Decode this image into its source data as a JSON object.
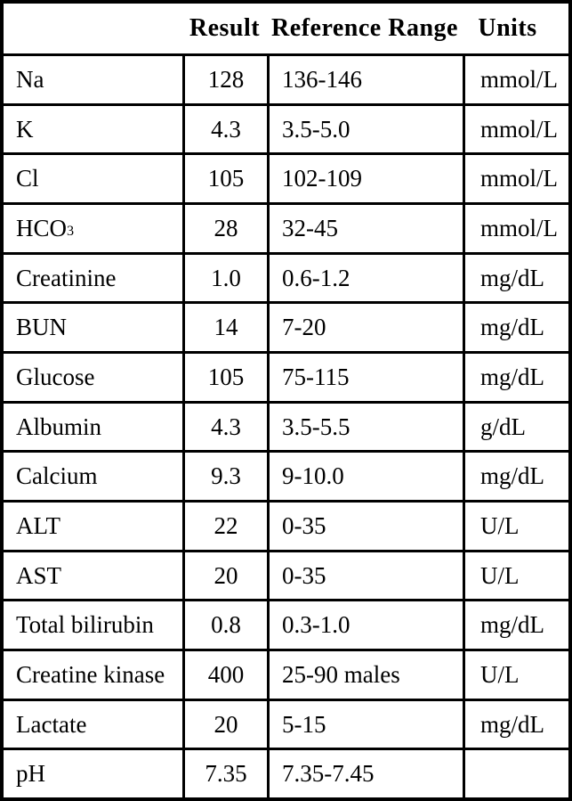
{
  "colors": {
    "border": "#000000",
    "background": "#ffffff",
    "text": "#000000"
  },
  "table": {
    "header": {
      "test": "",
      "result": "Result",
      "range": "Reference Range",
      "units": "Units"
    },
    "rows": [
      {
        "test": "Na",
        "result": "128",
        "range": "136-146",
        "units": "mmol/L"
      },
      {
        "test": "K",
        "result": "4.3",
        "range": "3.5-5.0",
        "units": "mmol/L"
      },
      {
        "test": "Cl",
        "result": "105",
        "range": "102-109",
        "units": "mmol/L"
      },
      {
        "test": "HCO",
        "test_sub": "3",
        "result": "28",
        "range": "32-45",
        "units": "mmol/L"
      },
      {
        "test": "Creatinine",
        "result": "1.0",
        "range": "0.6-1.2",
        "units": "mg/dL"
      },
      {
        "test": "BUN",
        "result": "14",
        "range": "7-20",
        "units": "mg/dL"
      },
      {
        "test": "Glucose",
        "result": "105",
        "range": "75-115",
        "units": "mg/dL"
      },
      {
        "test": "Albumin",
        "result": "4.3",
        "range": "3.5-5.5",
        "units": "g/dL"
      },
      {
        "test": "Calcium",
        "result": "9.3",
        "range": "9-10.0",
        "units": "mg/dL"
      },
      {
        "test": "ALT",
        "result": "22",
        "range": "0-35",
        "units": "U/L"
      },
      {
        "test": "AST",
        "result": "20",
        "range": "0-35",
        "units": "U/L"
      },
      {
        "test": "Total bilirubin",
        "result": "0.8",
        "range": "0.3-1.0",
        "units": "mg/dL"
      },
      {
        "test": "Creatine kinase",
        "result": "400",
        "range": "25-90 males",
        "units": "U/L"
      },
      {
        "test": "Lactate",
        "result": "20",
        "range": "5-15",
        "units": "mg/dL"
      },
      {
        "test": "pH",
        "result": "7.35",
        "range": "7.35-7.45",
        "units": ""
      }
    ]
  }
}
